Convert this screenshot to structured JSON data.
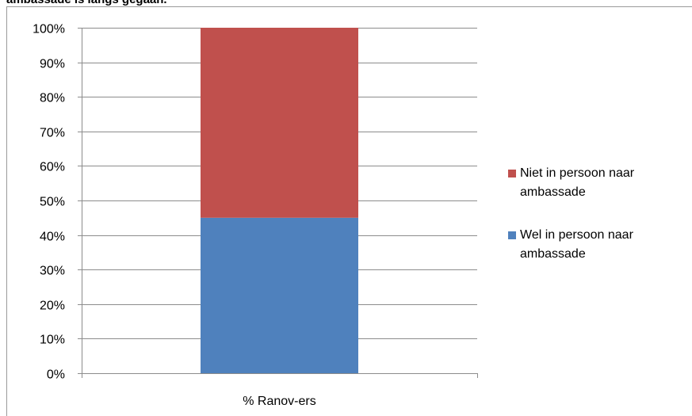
{
  "chart_data": {
    "type": "bar",
    "stacked": true,
    "title": "ambassade is langs gegaan.",
    "categories": [
      "% Ranov-ers"
    ],
    "series": [
      {
        "name": "Wel in persoon naar ambassade",
        "values": [
          45
        ],
        "color": "#4f81bd"
      },
      {
        "name": "Niet in persoon naar ambassade",
        "values": [
          55
        ],
        "color": "#c0504d"
      }
    ],
    "ylim": [
      0,
      100
    ],
    "yticks": [
      "0%",
      "10%",
      "20%",
      "30%",
      "40%",
      "50%",
      "60%",
      "70%",
      "80%",
      "90%",
      "100%"
    ],
    "grid": true,
    "legend_placement": "right"
  }
}
